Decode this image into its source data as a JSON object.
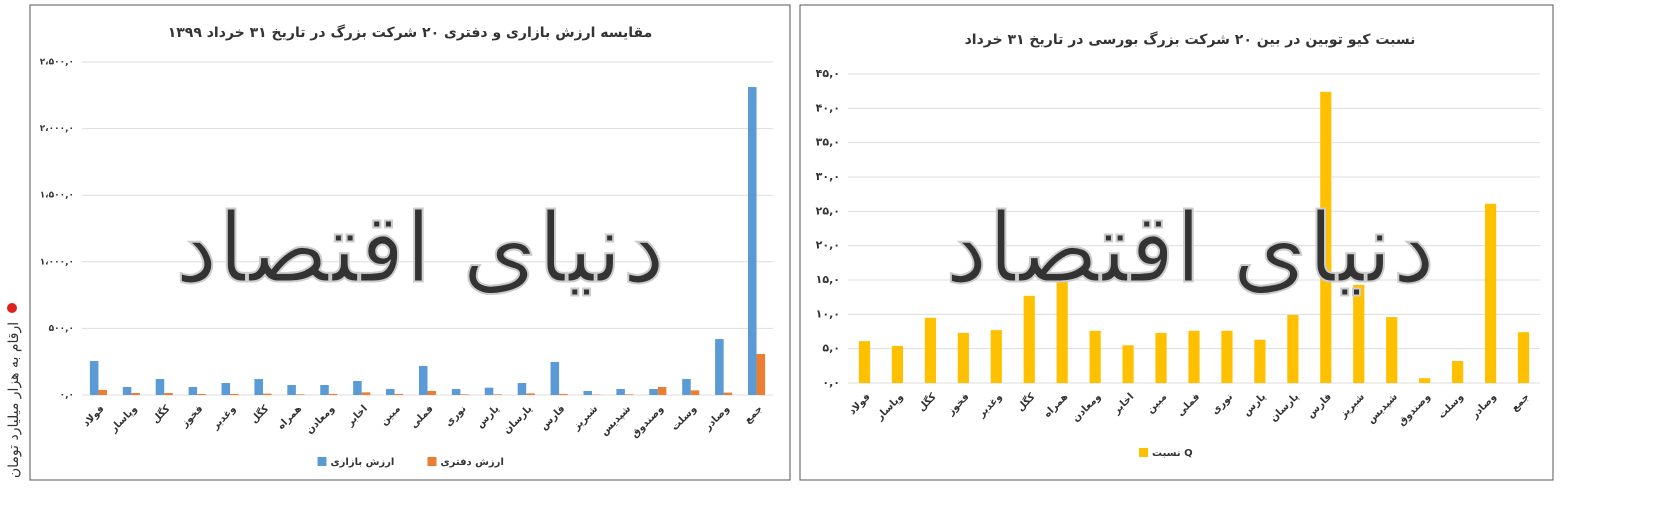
{
  "side_note": "ارقام به هزار میلیارد تومان",
  "watermark": "دنیای اقتصاد",
  "chart_data": [
    {
      "type": "bar",
      "title": "مقایسه ارزش بازاری و دفتری ۲۰ شرکت بزرگ در تاریخ ۳۱ خرداد ۱۳۹۹",
      "categories": [
        "فولاد",
        "وپاسار",
        "کگل",
        "فخوز",
        "وغدیر",
        "کگل",
        "همراه",
        "ومعادن",
        "اخابر",
        "مبین",
        "فملی",
        "نوری",
        "پارس",
        "پارسان",
        "فارس",
        "شبریز",
        "شپدیس",
        "وصندوق",
        "وسلت",
        "وصادر",
        "جمع"
      ],
      "series": [
        {
          "name": "ارزش بازاری",
          "color": "#5b9bd5",
          "values": [
            255,
            60,
            120,
            60,
            90,
            120,
            75,
            75,
            105,
            45,
            218,
            45,
            55,
            90,
            248,
            30,
            45,
            45,
            120,
            420,
            2312
          ]
        },
        {
          "name": "ارزش دفتری",
          "color": "#ed7d31",
          "values": [
            38,
            15,
            15,
            8,
            8,
            10,
            5,
            8,
            20,
            8,
            30,
            5,
            5,
            12,
            8,
            3,
            5,
            60,
            35,
            18,
            308
          ]
        }
      ],
      "ylim": [
        0,
        2500
      ],
      "yticks": [
        {
          "value": 0,
          "label": "۰,۰"
        },
        {
          "value": 500,
          "label": "۵۰۰,۰"
        },
        {
          "value": 1000,
          "label": "۱،۰۰۰,۰"
        },
        {
          "value": 1500,
          "label": "۱،۵۰۰,۰"
        },
        {
          "value": 2000,
          "label": "۲،۰۰۰,۰"
        },
        {
          "value": 2500,
          "label": "۲،۵۰۰,۰"
        }
      ],
      "grid": true
    },
    {
      "type": "bar",
      "title": "نسبت کیو توبین در بین ۲۰ شرکت بزرگ بورسی در تاریخ ۳۱ خرداد",
      "categories": [
        "فولاد",
        "وپاسار",
        "کگل",
        "فخوز",
        "وغدیر",
        "کگل",
        "همراه",
        "ومعادن",
        "اخابر",
        "مبین",
        "فملی",
        "نوری",
        "پارس",
        "پارسان",
        "فارس",
        "شبریز",
        "شپدیس",
        "وصندوق",
        "وسلت",
        "وصادر",
        "جمع"
      ],
      "series": [
        {
          "name": "نسبت Q",
          "color": "#ffc000",
          "values": [
            6.1,
            5.4,
            9.5,
            7.3,
            7.7,
            12.7,
            16.0,
            7.6,
            5.5,
            7.3,
            7.6,
            7.6,
            6.3,
            9.9,
            42.4,
            14.3,
            9.6,
            0.7,
            3.2,
            26.1,
            7.4
          ]
        }
      ],
      "ylim": [
        0,
        45
      ],
      "yticks": [
        {
          "value": 0,
          "label": "۰,۰"
        },
        {
          "value": 5,
          "label": "۵,۰"
        },
        {
          "value": 10,
          "label": "۱۰,۰"
        },
        {
          "value": 15,
          "label": "۱۵,۰"
        },
        {
          "value": 20,
          "label": "۲۰,۰"
        },
        {
          "value": 25,
          "label": "۲۵,۰"
        },
        {
          "value": 30,
          "label": "۳۰,۰"
        },
        {
          "value": 35,
          "label": "۳۵,۰"
        },
        {
          "value": 40,
          "label": "۴۰,۰"
        },
        {
          "value": 45,
          "label": "۴۵,۰"
        }
      ],
      "grid": true
    }
  ]
}
